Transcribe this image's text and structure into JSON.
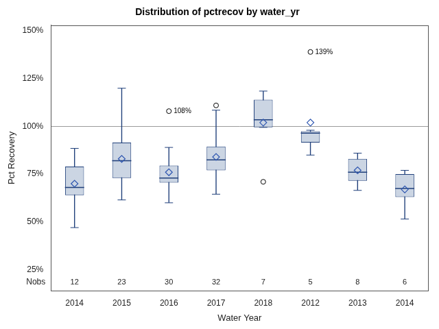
{
  "chart_data": {
    "type": "box",
    "title": "Distribution of pctrecov by water_yr",
    "x_label": "Water Year",
    "y_label": "Pct Recovery",
    "categories": [
      "2014",
      "2015",
      "2016",
      "2017",
      "2018",
      "2012",
      "2013",
      "2014"
    ],
    "whisker_low": [
      47,
      61.5,
      60,
      64.5,
      99.5,
      85,
      66.5,
      51.5
    ],
    "q1": [
      64,
      73,
      70.5,
      77,
      99.5,
      91.5,
      71.5,
      63
    ],
    "median": [
      68,
      82,
      73,
      82.5,
      103.5,
      96.5,
      76,
      67.5
    ],
    "q3": [
      79,
      91.5,
      79.5,
      89.5,
      114,
      97.5,
      83,
      75
    ],
    "whisker_high": [
      88.5,
      120,
      89,
      108.5,
      118.5,
      98,
      86,
      77
    ],
    "means": [
      70,
      83,
      76,
      84,
      102,
      102,
      77,
      67
    ],
    "outliers": [
      null,
      null,
      108,
      111,
      71,
      139,
      null,
      null
    ],
    "outlier_labels": [
      null,
      null,
      "108%",
      null,
      null,
      "139%",
      null,
      null
    ],
    "nobs_label": "Nobs",
    "nobs": [
      12,
      23,
      30,
      32,
      7,
      5,
      8,
      6
    ],
    "reference_line": 100,
    "color": "#cbd5e3",
    "ylim": [
      14,
      153
    ],
    "yticks": [
      {
        "value": 25,
        "label": "25%"
      },
      {
        "value": 50,
        "label": "50%"
      },
      {
        "value": 75,
        "label": "75%"
      },
      {
        "value": 100,
        "label": "100%"
      },
      {
        "value": 125,
        "label": "125%"
      },
      {
        "value": 150,
        "label": "150%"
      }
    ],
    "grid": false
  }
}
